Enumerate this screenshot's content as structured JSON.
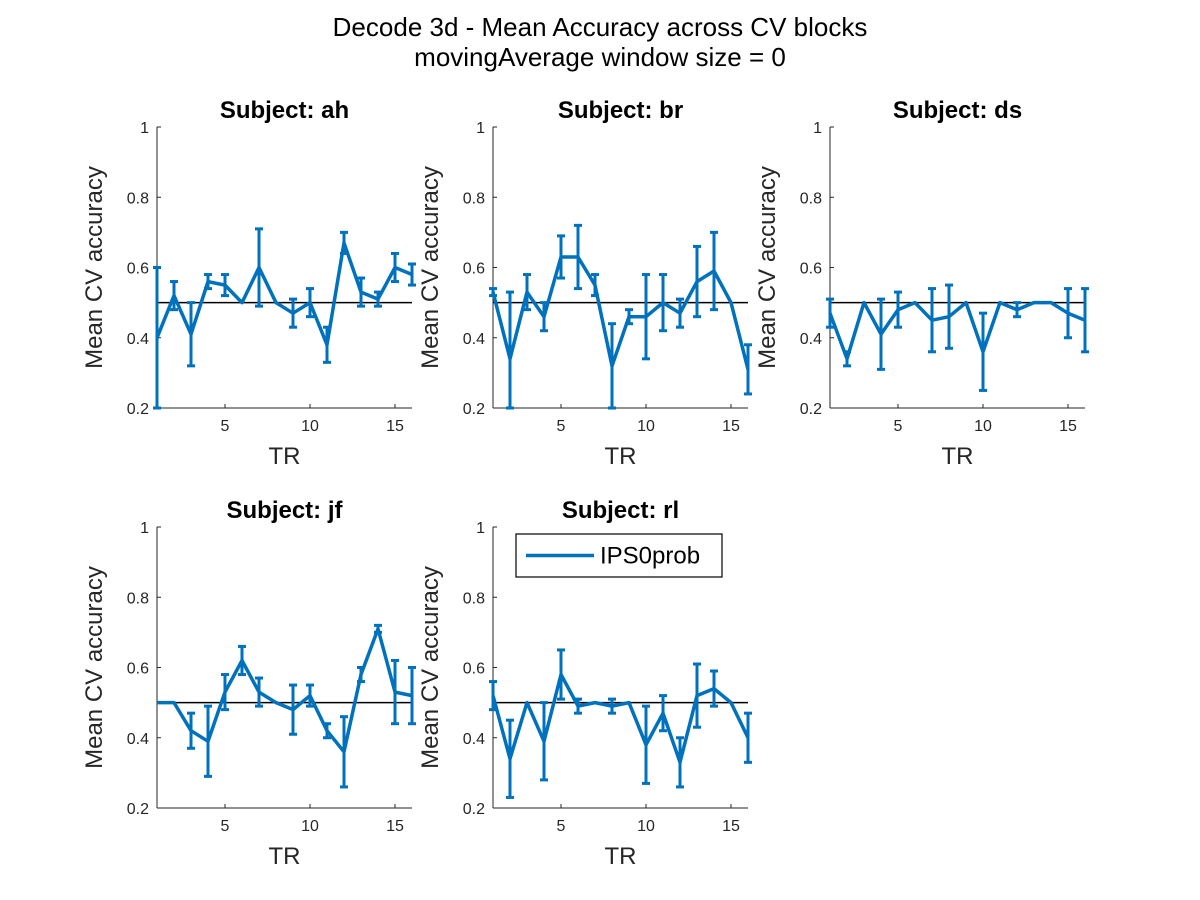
{
  "figure": {
    "title_line1": "Decode 3d - Mean Accuracy across CV blocks",
    "title_line2": "movingAverage window size = 0"
  },
  "colors": {
    "series": "#0072bd",
    "chance_line": "#000000",
    "axes": "#262626"
  },
  "legend": {
    "label": "IPS0prob",
    "placement": "top-right of Subject: rl panel"
  },
  "chart_data": [
    {
      "type": "line",
      "title": "Subject: ah",
      "xlabel": "TR",
      "ylabel": "Mean CV accuracy",
      "xlim": [
        1,
        16
      ],
      "ylim": [
        0.2,
        1
      ],
      "xticks": [
        5,
        10,
        15
      ],
      "yticks": [
        0.2,
        0.4,
        0.6,
        0.8,
        1
      ],
      "reference_line": 0.5,
      "grid": false,
      "series": [
        {
          "name": "IPS0prob",
          "x": [
            1,
            2,
            3,
            4,
            5,
            6,
            7,
            8,
            9,
            10,
            11,
            12,
            13,
            14,
            15,
            16
          ],
          "values": [
            0.4,
            0.52,
            0.41,
            0.56,
            0.55,
            0.5,
            0.6,
            0.5,
            0.47,
            0.5,
            0.38,
            0.67,
            0.53,
            0.51,
            0.6,
            0.58
          ],
          "err": [
            0.2,
            0.04,
            0.09,
            0.02,
            0.03,
            0.0,
            0.11,
            0.0,
            0.04,
            0.04,
            0.05,
            0.03,
            0.04,
            0.02,
            0.04,
            0.03
          ]
        }
      ]
    },
    {
      "type": "line",
      "title": "Subject: br",
      "xlabel": "TR",
      "ylabel": "Mean CV accuracy",
      "xlim": [
        1,
        16
      ],
      "ylim": [
        0.2,
        1
      ],
      "xticks": [
        5,
        10,
        15
      ],
      "yticks": [
        0.2,
        0.4,
        0.6,
        0.8,
        1
      ],
      "reference_line": 0.5,
      "grid": false,
      "series": [
        {
          "name": "IPS0prob",
          "x": [
            1,
            2,
            3,
            4,
            5,
            6,
            7,
            8,
            9,
            10,
            11,
            12,
            13,
            14,
            15,
            16
          ],
          "values": [
            0.53,
            0.34,
            0.53,
            0.46,
            0.63,
            0.63,
            0.55,
            0.32,
            0.46,
            0.46,
            0.5,
            0.47,
            0.56,
            0.59,
            0.5,
            0.31
          ],
          "err": [
            0.01,
            0.19,
            0.05,
            0.04,
            0.06,
            0.09,
            0.03,
            0.12,
            0.02,
            0.12,
            0.08,
            0.04,
            0.1,
            0.11,
            0.0,
            0.07
          ]
        }
      ]
    },
    {
      "type": "line",
      "title": "Subject: ds",
      "xlabel": "TR",
      "ylabel": "Mean CV accuracy",
      "xlim": [
        1,
        16
      ],
      "ylim": [
        0.2,
        1
      ],
      "xticks": [
        5,
        10,
        15
      ],
      "yticks": [
        0.2,
        0.4,
        0.6,
        0.8,
        1
      ],
      "reference_line": 0.5,
      "grid": false,
      "series": [
        {
          "name": "IPS0prob",
          "x": [
            1,
            2,
            3,
            4,
            5,
            6,
            7,
            8,
            9,
            10,
            11,
            12,
            13,
            14,
            15,
            16
          ],
          "values": [
            0.47,
            0.34,
            0.5,
            0.41,
            0.48,
            0.5,
            0.45,
            0.46,
            0.5,
            0.36,
            0.5,
            0.48,
            0.5,
            0.5,
            0.47,
            0.45
          ],
          "err": [
            0.04,
            0.02,
            0.0,
            0.1,
            0.05,
            0.0,
            0.09,
            0.09,
            0.0,
            0.11,
            0.0,
            0.02,
            0.0,
            0.0,
            0.07,
            0.09
          ]
        }
      ]
    },
    {
      "type": "line",
      "title": "Subject: jf",
      "xlabel": "TR",
      "ylabel": "Mean CV accuracy",
      "xlim": [
        1,
        16
      ],
      "ylim": [
        0.2,
        1
      ],
      "xticks": [
        5,
        10,
        15
      ],
      "yticks": [
        0.2,
        0.4,
        0.6,
        0.8,
        1
      ],
      "reference_line": 0.5,
      "grid": false,
      "series": [
        {
          "name": "IPS0prob",
          "x": [
            1,
            2,
            3,
            4,
            5,
            6,
            7,
            8,
            9,
            10,
            11,
            12,
            13,
            14,
            15,
            16
          ],
          "values": [
            0.5,
            0.5,
            0.42,
            0.39,
            0.53,
            0.62,
            0.53,
            0.5,
            0.48,
            0.52,
            0.42,
            0.36,
            0.58,
            0.71,
            0.53,
            0.52
          ],
          "err": [
            0.0,
            0.0,
            0.05,
            0.1,
            0.05,
            0.04,
            0.04,
            0.0,
            0.07,
            0.03,
            0.02,
            0.1,
            0.02,
            0.01,
            0.09,
            0.08
          ]
        }
      ]
    },
    {
      "type": "line",
      "title": "Subject: rl",
      "xlabel": "TR",
      "ylabel": "Mean CV accuracy",
      "xlim": [
        1,
        16
      ],
      "ylim": [
        0.2,
        1
      ],
      "xticks": [
        5,
        10,
        15
      ],
      "yticks": [
        0.2,
        0.4,
        0.6,
        0.8,
        1
      ],
      "reference_line": 0.5,
      "grid": false,
      "series": [
        {
          "name": "IPS0prob",
          "x": [
            1,
            2,
            3,
            4,
            5,
            6,
            7,
            8,
            9,
            10,
            11,
            12,
            13,
            14,
            15,
            16
          ],
          "values": [
            0.52,
            0.34,
            0.5,
            0.39,
            0.58,
            0.49,
            0.5,
            0.49,
            0.5,
            0.38,
            0.47,
            0.33,
            0.52,
            0.54,
            0.5,
            0.4
          ],
          "err": [
            0.04,
            0.11,
            0.0,
            0.11,
            0.07,
            0.02,
            0.0,
            0.02,
            0.0,
            0.11,
            0.05,
            0.07,
            0.09,
            0.05,
            0.0,
            0.07
          ]
        }
      ]
    }
  ]
}
